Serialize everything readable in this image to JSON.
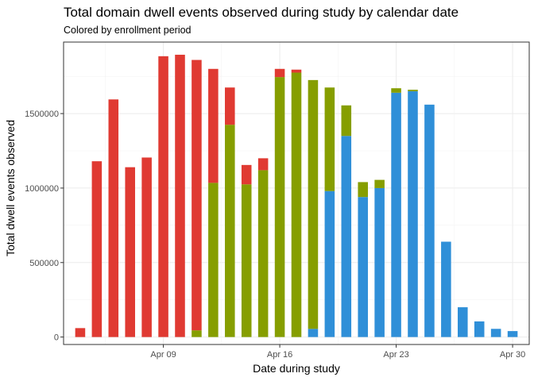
{
  "chart_data": {
    "type": "bar",
    "stacked": true,
    "title": "Total domain dwell events observed during study by calendar date",
    "subtitle": "Colored by enrollment period",
    "xlabel": "Date during study",
    "ylabel": "Total dwell events observed",
    "ylim": [
      -50000,
      1980000
    ],
    "xlim": [
      "2018-04-03",
      "2018-05-01"
    ],
    "yticks": [
      0,
      500000,
      1000000,
      1500000
    ],
    "ytick_labels": [
      "0",
      "500000",
      "1000000",
      "1500000"
    ],
    "xticks": [
      "2018-04-09",
      "2018-04-16",
      "2018-04-23",
      "2018-04-30"
    ],
    "xtick_labels": [
      "Apr 09",
      "Apr 16",
      "Apr 23",
      "Apr 30"
    ],
    "grid": true,
    "legend": "none",
    "dates": [
      "2018-04-04",
      "2018-04-05",
      "2018-04-06",
      "2018-04-07",
      "2018-04-08",
      "2018-04-09",
      "2018-04-10",
      "2018-04-11",
      "2018-04-12",
      "2018-04-13",
      "2018-04-14",
      "2018-04-15",
      "2018-04-16",
      "2018-04-17",
      "2018-04-18",
      "2018-04-19",
      "2018-04-20",
      "2018-04-21",
      "2018-04-22",
      "2018-04-23",
      "2018-04-24",
      "2018-04-25",
      "2018-04-26",
      "2018-04-27",
      "2018-04-28",
      "2018-04-29",
      "2018-04-30"
    ],
    "series": [
      {
        "color": "#e03a32",
        "values": [
          60000,
          1180000,
          1595000,
          1140000,
          1205000,
          1885000,
          1895000,
          1815000,
          765000,
          250000,
          130000,
          80000,
          55000,
          20000,
          0,
          0,
          0,
          0,
          0,
          0,
          0,
          0,
          0,
          0,
          0,
          0,
          0
        ]
      },
      {
        "color": "#869e00",
        "values": [
          0,
          0,
          0,
          0,
          0,
          0,
          0,
          45000,
          1035000,
          1425000,
          1025000,
          1120000,
          1745000,
          1775000,
          1670000,
          695000,
          205000,
          100000,
          55000,
          30000,
          10000,
          0,
          0,
          0,
          0,
          0,
          0
        ]
      },
      {
        "color": "#2f8fd8",
        "values": [
          0,
          0,
          0,
          0,
          0,
          0,
          0,
          0,
          0,
          0,
          0,
          0,
          0,
          0,
          55000,
          980000,
          1350000,
          940000,
          1000000,
          1640000,
          1650000,
          1560000,
          640000,
          200000,
          105000,
          55000,
          40000
        ]
      }
    ]
  }
}
